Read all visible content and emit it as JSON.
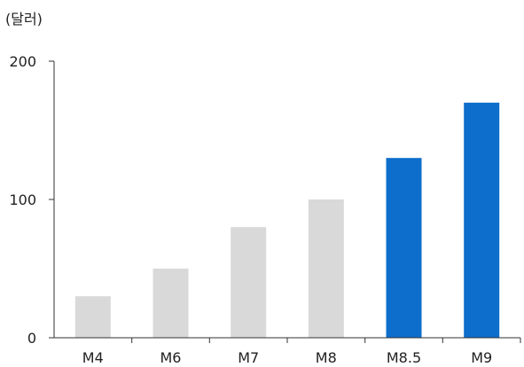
{
  "chart_data": {
    "type": "bar",
    "unit_label": "(달러)",
    "title": "",
    "xlabel": "",
    "ylabel": "(달러)",
    "categories": [
      "M4",
      "M6",
      "M7",
      "M8",
      "M8.5",
      "M9"
    ],
    "values": [
      30,
      50,
      80,
      100,
      130,
      170
    ],
    "ylim": [
      0,
      200
    ],
    "yticks": [
      "0",
      "100",
      "200"
    ],
    "grid": false,
    "legend": "none",
    "colors": {
      "default_bar": "#d9d9d9",
      "highlight_bar": "#0d6ecb",
      "axis": "#333333"
    },
    "highlight_categories": [
      "M8.5",
      "M9"
    ]
  }
}
